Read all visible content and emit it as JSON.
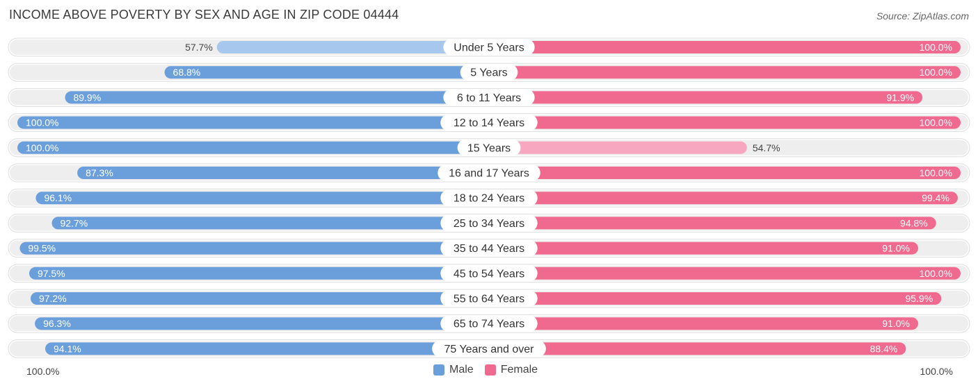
{
  "title": "INCOME ABOVE POVERTY BY SEX AND AGE IN ZIP CODE 04444",
  "source": "Source: ZipAtlas.com",
  "colors": {
    "male": "#6a9fdc",
    "male_light": "#a7c7ec",
    "female": "#f0698f",
    "female_light": "#f7a8c0",
    "row_bg": "#eeeeee"
  },
  "chart_data": {
    "type": "bar",
    "orientation": "horizontal-diverging",
    "categories": [
      "Under 5 Years",
      "5 Years",
      "6 to 11 Years",
      "12 to 14 Years",
      "15 Years",
      "16 and 17 Years",
      "18 to 24 Years",
      "25 to 34 Years",
      "35 to 44 Years",
      "45 to 54 Years",
      "55 to 64 Years",
      "65 to 74 Years",
      "75 Years and over"
    ],
    "series": [
      {
        "name": "Male",
        "values": [
          57.7,
          68.8,
          89.9,
          100.0,
          100.0,
          87.3,
          96.1,
          92.7,
          99.5,
          97.5,
          97.2,
          96.3,
          94.1
        ]
      },
      {
        "name": "Female",
        "values": [
          100.0,
          100.0,
          91.9,
          100.0,
          54.7,
          100.0,
          99.4,
          94.8,
          91.0,
          100.0,
          95.9,
          91.0,
          88.4
        ]
      }
    ],
    "xlim": [
      0,
      100
    ],
    "axis_left_label": "100.0%",
    "axis_right_label": "100.0%",
    "legend_position": "bottom-center"
  }
}
